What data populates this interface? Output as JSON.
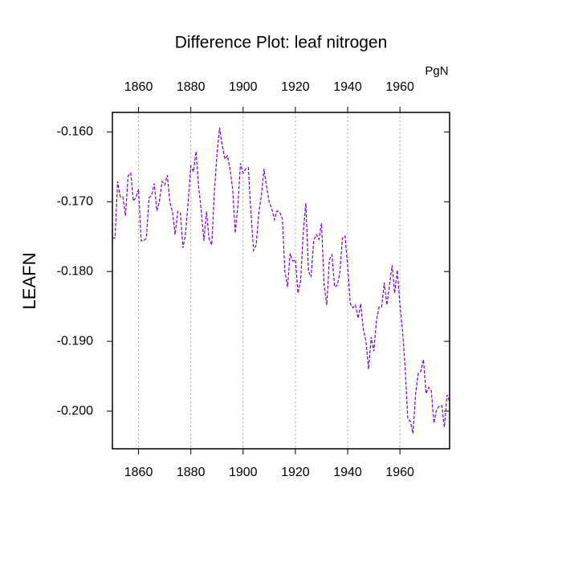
{
  "chart_data": {
    "type": "line",
    "title": "Difference Plot: leaf nitrogen",
    "ylabel": "LEAFN",
    "units": "PgN",
    "x": [
      1850,
      1851,
      1852,
      1853,
      1854,
      1855,
      1856,
      1857,
      1858,
      1859,
      1860,
      1861,
      1862,
      1863,
      1864,
      1865,
      1866,
      1867,
      1868,
      1869,
      1870,
      1871,
      1872,
      1873,
      1874,
      1875,
      1876,
      1877,
      1878,
      1879,
      1880,
      1881,
      1882,
      1883,
      1884,
      1885,
      1886,
      1887,
      1888,
      1889,
      1890,
      1891,
      1892,
      1893,
      1894,
      1895,
      1896,
      1897,
      1898,
      1899,
      1900,
      1901,
      1902,
      1903,
      1904,
      1905,
      1906,
      1907,
      1908,
      1909,
      1910,
      1911,
      1912,
      1913,
      1914,
      1915,
      1916,
      1917,
      1918,
      1919,
      1920,
      1921,
      1922,
      1923,
      1924,
      1925,
      1926,
      1927,
      1928,
      1929,
      1930,
      1931,
      1932,
      1933,
      1934,
      1935,
      1936,
      1937,
      1938,
      1939,
      1940,
      1941,
      1942,
      1943,
      1944,
      1945,
      1946,
      1947,
      1948,
      1949,
      1950,
      1951,
      1952,
      1953,
      1954,
      1955,
      1956,
      1957,
      1958,
      1959,
      1960,
      1961,
      1962,
      1963,
      1964,
      1965,
      1966,
      1967,
      1968,
      1969,
      1970,
      1971,
      1972,
      1973,
      1974,
      1975,
      1976,
      1977,
      1978,
      1979
    ],
    "values": [
      -0.1752,
      -0.1752,
      -0.1671,
      -0.1693,
      -0.1693,
      -0.172,
      -0.1663,
      -0.1659,
      -0.1699,
      -0.1694,
      -0.1682,
      -0.1756,
      -0.1756,
      -0.1752,
      -0.1694,
      -0.1691,
      -0.1674,
      -0.1713,
      -0.1699,
      -0.1671,
      -0.1676,
      -0.1662,
      -0.1701,
      -0.1715,
      -0.1747,
      -0.1714,
      -0.1716,
      -0.1766,
      -0.1745,
      -0.1699,
      -0.1649,
      -0.1657,
      -0.1628,
      -0.1679,
      -0.1713,
      -0.1756,
      -0.1714,
      -0.1754,
      -0.1762,
      -0.1687,
      -0.1632,
      -0.1594,
      -0.1618,
      -0.1639,
      -0.1634,
      -0.1653,
      -0.1682,
      -0.1745,
      -0.1705,
      -0.1645,
      -0.1659,
      -0.1653,
      -0.1651,
      -0.1716,
      -0.177,
      -0.1762,
      -0.1716,
      -0.1691,
      -0.1653,
      -0.1679,
      -0.1701,
      -0.171,
      -0.1726,
      -0.1713,
      -0.1715,
      -0.1724,
      -0.18,
      -0.1822,
      -0.1774,
      -0.1785,
      -0.1783,
      -0.1831,
      -0.1814,
      -0.1745,
      -0.1702,
      -0.1799,
      -0.1808,
      -0.1756,
      -0.1747,
      -0.1754,
      -0.1731,
      -0.182,
      -0.1848,
      -0.1783,
      -0.1776,
      -0.1822,
      -0.182,
      -0.1802,
      -0.1752,
      -0.1749,
      -0.1791,
      -0.1846,
      -0.1852,
      -0.1848,
      -0.1867,
      -0.1846,
      -0.1883,
      -0.19,
      -0.194,
      -0.1894,
      -0.1914,
      -0.1871,
      -0.1851,
      -0.1851,
      -0.1816,
      -0.1848,
      -0.182,
      -0.1791,
      -0.1831,
      -0.1798,
      -0.1848,
      -0.1885,
      -0.1938,
      -0.2011,
      -0.2015,
      -0.2032,
      -0.1975,
      -0.1946,
      -0.1943,
      -0.1926,
      -0.1975,
      -0.1966,
      -0.1971,
      -0.2017,
      -0.1998,
      -0.1993,
      -0.1992,
      -0.2023,
      -0.1977,
      -0.1986
    ],
    "color": "#7a00d0",
    "dashed": true,
    "xlim": [
      1850,
      1979
    ],
    "xticks": [
      1860,
      1880,
      1900,
      1920,
      1940,
      1960
    ],
    "ylim": [
      -0.2054,
      -0.1572
    ],
    "yticks": [
      {
        "value": -0.2,
        "label": "-0.200"
      },
      {
        "value": -0.19,
        "label": "-0.190"
      },
      {
        "value": -0.18,
        "label": "-0.180"
      },
      {
        "value": -0.17,
        "label": "-0.170"
      },
      {
        "value": -0.16,
        "label": "-0.160"
      }
    ],
    "grid": "x",
    "top_tick_color": "blue",
    "bottom_tick_color": "red"
  }
}
